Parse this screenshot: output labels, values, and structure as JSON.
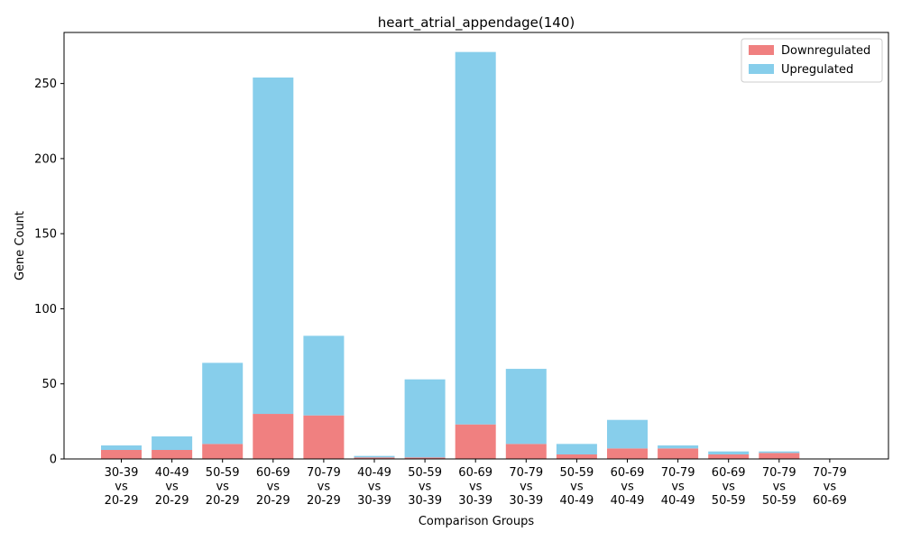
{
  "chart_data": {
    "type": "bar",
    "stacked": true,
    "title": "heart_atrial_appendage(140)",
    "xlabel": "Comparison Groups",
    "ylabel": "Gene Count",
    "ylim": [
      0,
      284
    ],
    "yticks": [
      0,
      50,
      100,
      150,
      200,
      250
    ],
    "legend_position": "top-right",
    "grid": false,
    "categories": [
      [
        "30-39",
        "vs",
        "20-29"
      ],
      [
        "40-49",
        "vs",
        "20-29"
      ],
      [
        "50-59",
        "vs",
        "20-29"
      ],
      [
        "60-69",
        "vs",
        "20-29"
      ],
      [
        "70-79",
        "vs",
        "20-29"
      ],
      [
        "40-49",
        "vs",
        "30-39"
      ],
      [
        "50-59",
        "vs",
        "30-39"
      ],
      [
        "60-69",
        "vs",
        "30-39"
      ],
      [
        "70-79",
        "vs",
        "30-39"
      ],
      [
        "50-59",
        "vs",
        "40-49"
      ],
      [
        "60-69",
        "vs",
        "40-49"
      ],
      [
        "70-79",
        "vs",
        "40-49"
      ],
      [
        "60-69",
        "vs",
        "50-59"
      ],
      [
        "70-79",
        "vs",
        "50-59"
      ],
      [
        "70-79",
        "vs",
        "60-69"
      ]
    ],
    "series": [
      {
        "name": "Downregulated",
        "color": "#f08080",
        "values": [
          6,
          6,
          10,
          30,
          29,
          1,
          1,
          23,
          10,
          3,
          7,
          7,
          3,
          4,
          0
        ]
      },
      {
        "name": "Upregulated",
        "color": "#87ceeb",
        "values": [
          3,
          9,
          54,
          224,
          53,
          1,
          52,
          248,
          50,
          7,
          19,
          2,
          2,
          1,
          0
        ]
      }
    ]
  }
}
